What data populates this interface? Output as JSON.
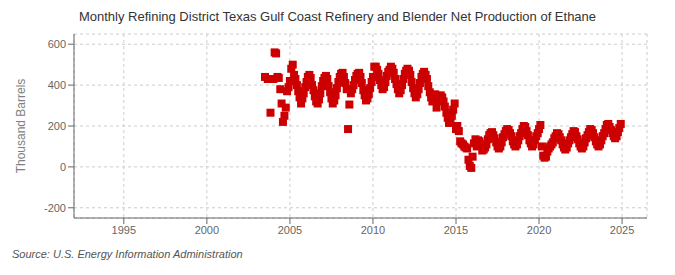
{
  "chart_data": {
    "type": "scatter",
    "title": "Monthly Refining District Texas Gulf Coast Refinery and Blender Net Production of Ethane",
    "y_label": "Thousand Barrels",
    "source": "Source: U.S. Energy Information Administration",
    "color": "#cc0000",
    "marker": "square",
    "grid": true,
    "xlim": [
      1992.0,
      2026.5
    ],
    "ylim": [
      -250,
      650
    ],
    "xticks": [
      1995,
      2000,
      2005,
      2010,
      2015,
      2020,
      2025
    ],
    "yticks": [
      -200,
      0,
      200,
      400,
      600
    ],
    "x": [
      2003.5,
      2003.67,
      2003.83,
      2004.0,
      2004.08,
      2004.17,
      2004.25,
      2004.33,
      2004.42,
      2004.5,
      2004.58,
      2004.67,
      2004.75,
      2004.83,
      2004.92,
      2005.0,
      2005.08,
      2005.17,
      2005.25,
      2005.33,
      2005.42,
      2005.5,
      2005.58,
      2005.67,
      2005.75,
      2005.83,
      2005.92,
      2006.0,
      2006.08,
      2006.17,
      2006.25,
      2006.33,
      2006.42,
      2006.5,
      2006.58,
      2006.67,
      2006.75,
      2006.83,
      2006.92,
      2007.0,
      2007.08,
      2007.17,
      2007.25,
      2007.33,
      2007.42,
      2007.5,
      2007.58,
      2007.67,
      2007.75,
      2007.83,
      2007.92,
      2008.0,
      2008.08,
      2008.17,
      2008.25,
      2008.33,
      2008.42,
      2008.5,
      2008.58,
      2008.67,
      2008.75,
      2008.83,
      2008.92,
      2009.0,
      2009.08,
      2009.17,
      2009.25,
      2009.33,
      2009.42,
      2009.5,
      2009.58,
      2009.67,
      2009.75,
      2009.83,
      2009.92,
      2010.0,
      2010.08,
      2010.17,
      2010.25,
      2010.33,
      2010.42,
      2010.5,
      2010.58,
      2010.67,
      2010.75,
      2010.83,
      2010.92,
      2011.0,
      2011.08,
      2011.17,
      2011.25,
      2011.33,
      2011.42,
      2011.5,
      2011.58,
      2011.67,
      2011.75,
      2011.83,
      2011.92,
      2012.0,
      2012.08,
      2012.17,
      2012.25,
      2012.33,
      2012.42,
      2012.5,
      2012.58,
      2012.67,
      2012.75,
      2012.83,
      2012.92,
      2013.0,
      2013.08,
      2013.17,
      2013.25,
      2013.33,
      2013.42,
      2013.5,
      2013.58,
      2013.67,
      2013.75,
      2013.83,
      2013.92,
      2014.0,
      2014.08,
      2014.17,
      2014.25,
      2014.33,
      2014.42,
      2014.5,
      2014.58,
      2014.67,
      2014.75,
      2014.83,
      2014.92,
      2015.0,
      2015.08,
      2015.17,
      2015.25,
      2015.33,
      2015.42,
      2015.5,
      2015.58,
      2015.67,
      2015.75,
      2015.83,
      2015.92,
      2016.0,
      2016.08,
      2016.17,
      2016.25,
      2016.33,
      2016.42,
      2016.5,
      2016.58,
      2016.67,
      2016.75,
      2016.83,
      2016.92,
      2017.0,
      2017.08,
      2017.17,
      2017.25,
      2017.33,
      2017.42,
      2017.5,
      2017.58,
      2017.67,
      2017.75,
      2017.83,
      2017.92,
      2018.0,
      2018.08,
      2018.17,
      2018.25,
      2018.33,
      2018.42,
      2018.5,
      2018.58,
      2018.67,
      2018.75,
      2018.83,
      2018.92,
      2019.0,
      2019.08,
      2019.17,
      2019.25,
      2019.33,
      2019.42,
      2019.5,
      2019.58,
      2019.67,
      2019.75,
      2019.83,
      2019.92,
      2020.0,
      2020.08,
      2020.17,
      2020.25,
      2020.33,
      2020.42,
      2020.5,
      2020.58,
      2020.67,
      2020.75,
      2020.83,
      2020.92,
      2021.0,
      2021.08,
      2021.17,
      2021.25,
      2021.33,
      2021.42,
      2021.5,
      2021.58,
      2021.67,
      2021.75,
      2021.83,
      2021.92,
      2022.0,
      2022.08,
      2022.17,
      2022.25,
      2022.33,
      2022.42,
      2022.5,
      2022.58,
      2022.67,
      2022.75,
      2022.83,
      2022.92,
      2023.0,
      2023.08,
      2023.17,
      2023.25,
      2023.33,
      2023.42,
      2023.5,
      2023.58,
      2023.67,
      2023.75,
      2023.83,
      2023.92,
      2024.0,
      2024.08,
      2024.17,
      2024.25,
      2024.33,
      2024.42,
      2024.5,
      2024.58,
      2024.67,
      2024.75,
      2024.83,
      2024.92
    ],
    "values": [
      440,
      430,
      265,
      430,
      560,
      555,
      440,
      435,
      380,
      310,
      220,
      250,
      290,
      370,
      390,
      420,
      480,
      500,
      450,
      430,
      400,
      370,
      340,
      310,
      335,
      360,
      390,
      415,
      440,
      450,
      435,
      400,
      375,
      345,
      320,
      310,
      330,
      360,
      395,
      420,
      435,
      445,
      430,
      395,
      365,
      335,
      310,
      325,
      350,
      385,
      415,
      440,
      455,
      460,
      440,
      410,
      380,
      185,
      305,
      360,
      380,
      400,
      425,
      445,
      455,
      460,
      440,
      410,
      375,
      350,
      325,
      335,
      355,
      385,
      415,
      440,
      490,
      490,
      475,
      455,
      425,
      400,
      380,
      390,
      415,
      445,
      465,
      475,
      490,
      480,
      460,
      430,
      405,
      380,
      360,
      375,
      400,
      430,
      455,
      470,
      480,
      470,
      450,
      415,
      385,
      360,
      340,
      355,
      380,
      410,
      440,
      455,
      465,
      450,
      430,
      395,
      365,
      340,
      320,
      335,
      355,
      290,
      325,
      340,
      350,
      340,
      320,
      295,
      265,
      240,
      215,
      225,
      250,
      280,
      310,
      185,
      200,
      175,
      125,
      115,
      110,
      100,
      95,
      90,
      35,
      5,
      -5,
      50,
      115,
      135,
      100,
      130,
      125,
      110,
      80,
      85,
      95,
      110,
      135,
      155,
      165,
      170,
      155,
      140,
      120,
      100,
      90,
      100,
      120,
      145,
      160,
      175,
      185,
      180,
      165,
      150,
      125,
      110,
      100,
      110,
      130,
      150,
      165,
      185,
      200,
      195,
      175,
      155,
      130,
      115,
      100,
      110,
      130,
      150,
      165,
      185,
      205,
      100,
      55,
      45,
      50,
      75,
      90,
      100,
      110,
      120,
      140,
      150,
      165,
      160,
      145,
      130,
      110,
      95,
      85,
      95,
      115,
      130,
      145,
      160,
      175,
      170,
      150,
      135,
      115,
      100,
      90,
      100,
      120,
      140,
      155,
      170,
      185,
      180,
      165,
      145,
      125,
      110,
      100,
      110,
      130,
      150,
      165,
      185,
      205,
      210,
      195,
      180,
      165,
      150,
      140,
      150,
      170,
      190,
      210
    ]
  }
}
